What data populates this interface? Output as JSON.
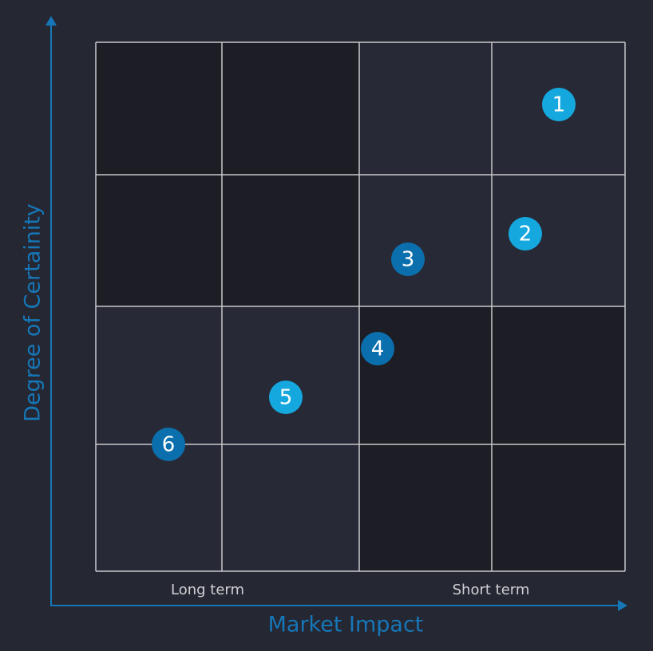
{
  "axes": {
    "y_label": "Degree of Certainity",
    "x_label": "Market Impact"
  },
  "columns": [
    "Long term",
    "Short term"
  ],
  "markers": [
    {
      "label": "1"
    },
    {
      "label": "2"
    },
    {
      "label": "3"
    },
    {
      "label": "4"
    },
    {
      "label": "5"
    },
    {
      "label": "6"
    }
  ]
}
